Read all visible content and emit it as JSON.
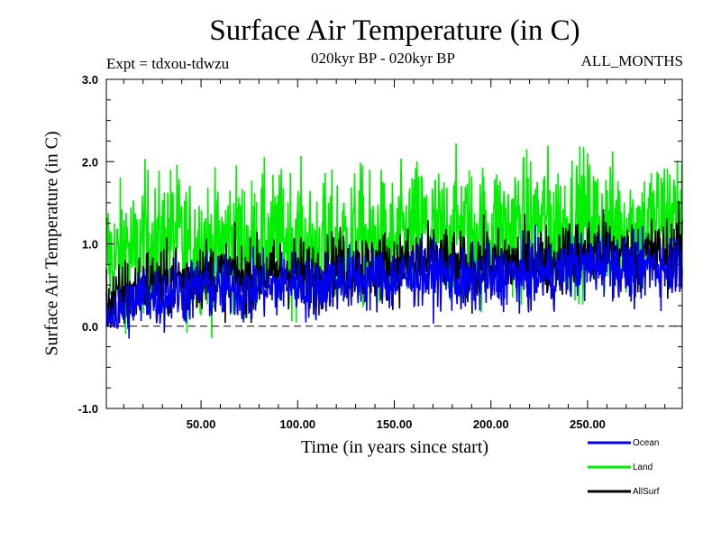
{
  "chart_data": {
    "type": "line",
    "title": "Surface Air Temperature (in C)",
    "subtitle_left": "Expt = tdxou-tdwzu",
    "subtitle_center": "020kyr BP - 020kyr BP",
    "subtitle_right": "ALL_MONTHS",
    "xlabel": "Time (in years since start)",
    "ylabel": "Surface Air Temperature (in C)",
    "xlim": [
      1,
      299
    ],
    "ylim": [
      -1.0,
      3.0
    ],
    "x_ticks": [
      50,
      100,
      150,
      200,
      250
    ],
    "x_tick_labels": [
      "50.00",
      "100.00",
      "150.00",
      "200.00",
      "250.00"
    ],
    "y_ticks": [
      -1.0,
      0.0,
      1.0,
      2.0,
      3.0
    ],
    "y_tick_labels": [
      "-1.0",
      "0.0",
      "1.0",
      "2.0",
      "3.0"
    ],
    "reference_line": 0.0,
    "grid": false,
    "legend_position": "bottom-right, below plot",
    "series": [
      {
        "name": "Land",
        "color": "#00ee00",
        "values": [
          0.9,
          0.75,
          1.0,
          0.8,
          1.1,
          0.95,
          1.05,
          1.15,
          0.95,
          1.0,
          1.05,
          0.9,
          1.0,
          1.1,
          1.0,
          0.95,
          1.05,
          1.0,
          1.05,
          1.1,
          1.0,
          0.9,
          1.0,
          0.95,
          1.05,
          1.0,
          1.1,
          1.0,
          1.05,
          0.95,
          1.0,
          1.1,
          1.2,
          1.15,
          1.1,
          1.1,
          1.2,
          1.15,
          1.15,
          1.1,
          1.2,
          1.15,
          1.25,
          1.2,
          1.25,
          1.3,
          1.2,
          1.25,
          1.3,
          1.3,
          1.25,
          1.2,
          1.2,
          1.25,
          1.2,
          1.15,
          1.25,
          1.3,
          1.35,
          1.3
        ]
      },
      {
        "name": "Ocean",
        "color": "#0000ee",
        "values": [
          0.2,
          0.15,
          0.25,
          0.3,
          0.4,
          0.35,
          0.35,
          0.45,
          0.4,
          0.45,
          0.5,
          0.45,
          0.45,
          0.5,
          0.4,
          0.45,
          0.5,
          0.45,
          0.5,
          0.55,
          0.5,
          0.45,
          0.5,
          0.55,
          0.6,
          0.55,
          0.6,
          0.55,
          0.6,
          0.55,
          0.6,
          0.6,
          0.65,
          0.6,
          0.65,
          0.6,
          0.55,
          0.5,
          0.6,
          0.6,
          0.55,
          0.65,
          0.6,
          0.6,
          0.65,
          0.65,
          0.6,
          0.7,
          0.75,
          0.7,
          0.75,
          0.8,
          0.75,
          0.7,
          0.65,
          0.7,
          0.75,
          0.7,
          0.75,
          0.8
        ]
      },
      {
        "name": "AllSurf",
        "color": "#000000",
        "values": [
          0.35,
          0.3,
          0.4,
          0.45,
          0.55,
          0.5,
          0.5,
          0.6,
          0.55,
          0.6,
          0.65,
          0.6,
          0.6,
          0.65,
          0.55,
          0.6,
          0.65,
          0.6,
          0.65,
          0.7,
          0.65,
          0.6,
          0.65,
          0.7,
          0.75,
          0.7,
          0.75,
          0.7,
          0.75,
          0.7,
          0.75,
          0.75,
          0.8,
          0.75,
          0.8,
          0.75,
          0.7,
          0.65,
          0.75,
          0.75,
          0.7,
          0.8,
          0.75,
          0.75,
          0.8,
          0.8,
          0.75,
          0.85,
          0.9,
          0.85,
          0.9,
          0.95,
          0.9,
          0.85,
          0.8,
          0.85,
          0.9,
          0.85,
          0.9,
          0.95
        ]
      }
    ]
  }
}
